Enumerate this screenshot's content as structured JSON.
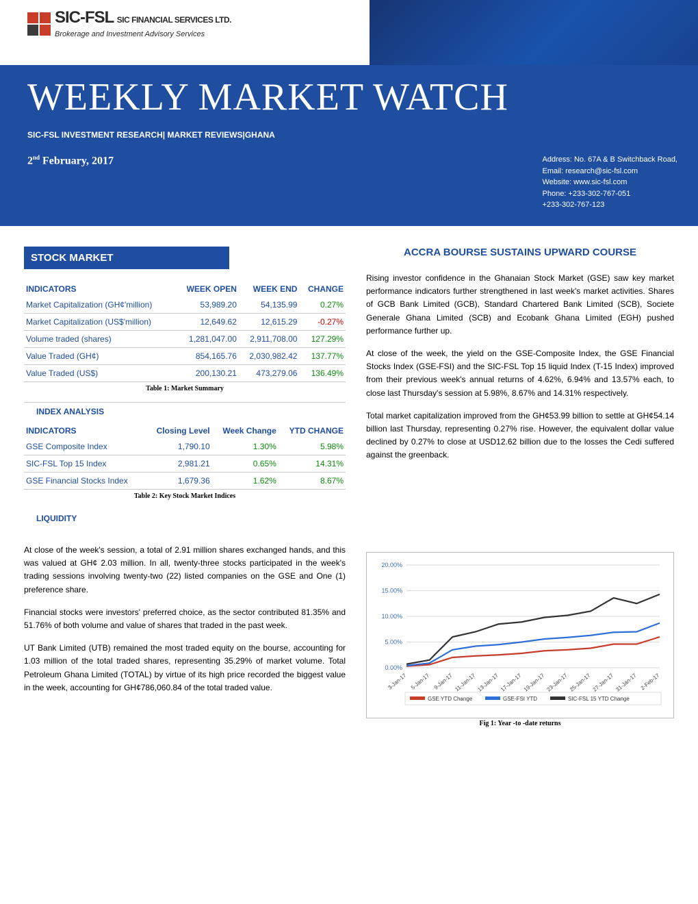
{
  "logo": {
    "brand": "SIC-FSL",
    "company": "SIC FINANCIAL SERVICES LTD.",
    "tag": "Brokerage and Investment Advisory Services"
  },
  "title": "WEEKLY MARKET WATCH",
  "subtitle": "SIC-FSL INVESTMENT RESEARCH| MARKET REVIEWS|GHANA",
  "date_prefix": "2",
  "date_sup": "nd",
  "date_rest": " February, 2017",
  "address": {
    "l1": "Address: No. 67A & B Switchback Road,",
    "l2": "Email:      research@sic-fsl.com",
    "l3": "Website: www.sic-fsl.com",
    "l4": "Phone:   +233-302-767-051",
    "l5": "               +233-302-767-123"
  },
  "stock_market_header": "STOCK MARKET",
  "table1": {
    "headers": [
      "INDICATORS",
      "WEEK OPEN",
      "WEEK END",
      "CHANGE"
    ],
    "rows": [
      {
        "label": "Market Capitalization (GH¢'million)",
        "open": "53,989.20",
        "end": "54,135.99",
        "chg": "0.27%",
        "cls": "pos"
      },
      {
        "label": "Market Capitalization (US$'million)",
        "open": "12,649.62",
        "end": "12,615.29",
        "chg": "-0.27%",
        "cls": "neg"
      },
      {
        "label": "Volume traded (shares)",
        "open": "1,281,047.00",
        "end": "2,911,708.00",
        "chg": "127.29%",
        "cls": "pos"
      },
      {
        "label": "Value Traded (GH¢)",
        "open": "854,165.76",
        "end": "2,030,982.42",
        "chg": "137.77%",
        "cls": "pos"
      },
      {
        "label": "Value Traded (US$)",
        "open": "200,130.21",
        "end": "473,279.06",
        "chg": "136.49%",
        "cls": "pos"
      }
    ],
    "caption": "Table 1: Market Summary"
  },
  "index_analysis_label": "INDEX ANALYSIS",
  "table2": {
    "headers": [
      "INDICATORS",
      "Closing Level",
      "Week Change",
      "YTD CHANGE"
    ],
    "rows": [
      {
        "label": "GSE Composite Index",
        "close": "1,790.10",
        "wk": "1.30%",
        "ytd": "5.98%",
        "cls": "pos"
      },
      {
        "label": "SIC-FSL Top 15 Index",
        "close": "2,981.21",
        "wk": "0.65%",
        "ytd": "14.31%",
        "cls": "pos"
      },
      {
        "label": "GSE Financial Stocks Index",
        "close": "1,679.36",
        "wk": "1.62%",
        "ytd": "8.67%",
        "cls": "pos"
      }
    ],
    "caption": "Table 2: Key Stock Market Indices"
  },
  "liquidity_label": "LIQUIDITY",
  "liquidity_paras": [
    "At close of the week's session, a total of 2.91 million shares exchanged hands, and this was valued at GH¢ 2.03 million. In all, twenty-three stocks participated in the week's trading sessions involving twenty-two (22) listed companies on the GSE and One (1) preference share.",
    "Financial stocks were investors' preferred choice, as the sector contributed 81.35% and 51.76% of both volume and value of shares that traded in the past week.",
    "UT Bank Limited (UTB) remained the most traded equity on the bourse, accounting for 1.03 million of the total traded shares, representing 35.29% of market volume. Total Petroleum Ghana Limited (TOTAL) by virtue of its high price recorded the biggest value in the week, accounting for GH¢786,060.84 of the total traded value."
  ],
  "article_title": "ACCRA BOURSE SUSTAINS UPWARD COURSE",
  "article_paras": [
    "Rising investor confidence in the Ghanaian Stock Market (GSE) saw key market performance indicators further strengthened in last week's market activities.  Shares of GCB Bank Limited (GCB), Standard Chartered Bank Limited (SCB), Societe Generale Ghana Limited (SCB) and Ecobank Ghana Limited (EGH) pushed performance further up.",
    "At close of the week, the yield on the GSE-Composite Index, the GSE Financial Stocks Index (GSE-FSI) and the SIC-FSL Top 15 liquid Index (T-15 Index) improved from their previous week's annual returns of 4.62%, 6.94% and 13.57% each, to close  last Thursday's session at 5.98%, 8.67% and 14.31% respectively.",
    "Total market capitalization improved from the GH¢53.99 billion to settle at GH¢54.14 billion last Thursday, representing 0.27% rise. However, the equivalent dollar value declined by 0.27% to close at USD12.62 billion due to the losses the Cedi suffered against the greenback."
  ],
  "chart": {
    "type": "line",
    "ylim": [
      0,
      20
    ],
    "ytick_step": 5,
    "ylabels": [
      "0.00%",
      "5.00%",
      "10.00%",
      "15.00%",
      "20.00%"
    ],
    "xlabels": [
      "3-Jan-17",
      "5-Jan-17",
      "9-Jan-17",
      "11-Jan-17",
      "13-Jan-17",
      "17-Jan-17",
      "19-Jan-17",
      "23-Jan-17",
      "25-Jan-17",
      "27-Jan-17",
      "31-Jan-17",
      "2-Feb-17"
    ],
    "series": [
      {
        "name": "GSE YTD Change",
        "color": "#c83c2a",
        "vals": [
          0.3,
          0.6,
          2.0,
          2.3,
          2.5,
          2.8,
          3.3,
          3.5,
          3.8,
          4.6,
          4.6,
          6.0
        ]
      },
      {
        "name": "GSE-FSI YTD",
        "color": "#2e6fd6",
        "vals": [
          0.4,
          0.9,
          3.5,
          4.2,
          4.5,
          5.0,
          5.6,
          5.9,
          6.3,
          6.9,
          7.0,
          8.7
        ]
      },
      {
        "name": "SIC-FSL 15 YTD Change",
        "color": "#333333",
        "vals": [
          0.7,
          1.5,
          6.0,
          7.0,
          8.5,
          8.9,
          9.8,
          10.2,
          11.0,
          13.6,
          12.5,
          14.3
        ]
      }
    ],
    "legend": [
      "GSE YTD Change",
      "GSE-FSI YTD",
      "SIC-FSL 15 YTD Change"
    ],
    "caption": "Fig 1: Year -to -date returns",
    "bg": "#ffffff",
    "grid": "#d9d9d9",
    "text_color": "#3b6fb5",
    "axis_fontsize": 9
  }
}
